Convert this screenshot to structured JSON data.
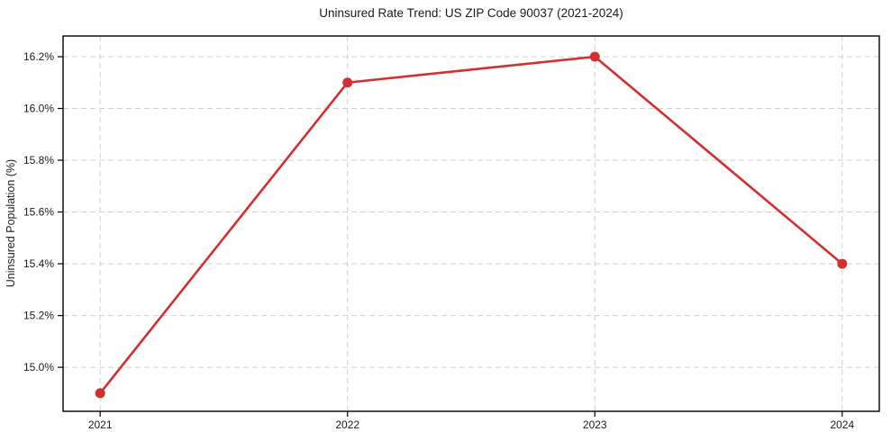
{
  "chart_data": {
    "type": "line",
    "title": "Uninsured Rate Trend: US ZIP Code 90037 (2021-2024)",
    "xlabel": "",
    "ylabel": "Uninsured Population (%)",
    "x": [
      2021,
      2022,
      2023,
      2024
    ],
    "values": [
      14.9,
      16.1,
      16.2,
      15.4
    ],
    "x_tick_labels": [
      "2021",
      "2022",
      "2023",
      "2024"
    ],
    "y_ticks": [
      15.0,
      15.2,
      15.4,
      15.6,
      15.8,
      16.0,
      16.2
    ],
    "y_tick_labels": [
      "15.0%",
      "15.2%",
      "15.4%",
      "15.6%",
      "15.8%",
      "16.0%",
      "16.2%"
    ],
    "xlim": [
      2020.85,
      2024.15
    ],
    "ylim": [
      14.83,
      16.28
    ],
    "grid": true,
    "grid_style": "dashed",
    "legend_position": "none",
    "line_color": "#d32f2f",
    "marker": "circle",
    "grid_color": "#cfcfcf",
    "axis_color": "#000000",
    "text_color": "#1a1a1a",
    "background_color": "#ffffff"
  }
}
